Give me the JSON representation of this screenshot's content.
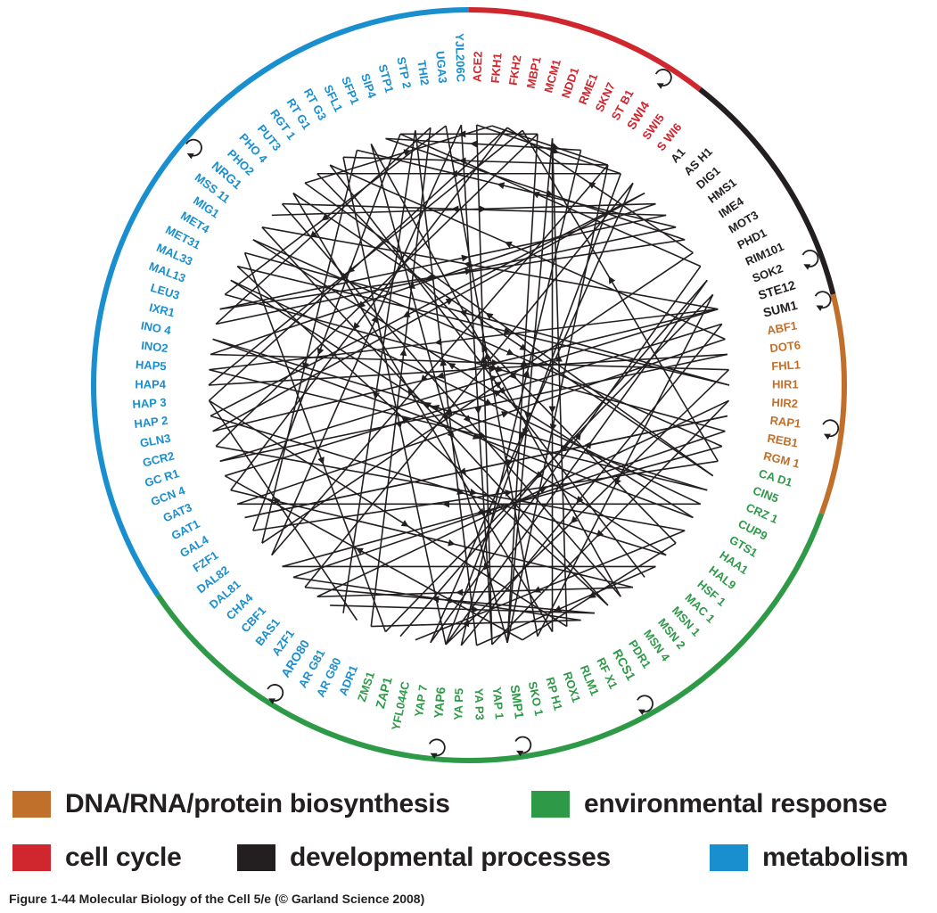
{
  "colors": {
    "biosynthesis": "#c0702a",
    "cell_cycle": "#d0262e",
    "developmental": "#231f20",
    "environmental": "#2e9a48",
    "metabolism": "#1a8fcf",
    "edge": "#231f20"
  },
  "ring_segments": [
    {
      "category": "cell_cycle",
      "from_deg": 0,
      "to_deg": 38
    },
    {
      "category": "developmental",
      "from_deg": 38,
      "to_deg": 76
    },
    {
      "category": "biosynthesis",
      "from_deg": 76,
      "to_deg": 110
    },
    {
      "category": "environmental",
      "from_deg": 110,
      "to_deg": 236
    },
    {
      "category": "metabolism",
      "from_deg": 236,
      "to_deg": 360
    }
  ],
  "genes": [
    {
      "name": "ACE2",
      "category": "cell_cycle"
    },
    {
      "name": "FKH1",
      "category": "cell_cycle"
    },
    {
      "name": "FKH2",
      "category": "cell_cycle"
    },
    {
      "name": "MBP1",
      "category": "cell_cycle"
    },
    {
      "name": "MCM1",
      "category": "cell_cycle"
    },
    {
      "name": "NDD1",
      "category": "cell_cycle"
    },
    {
      "name": "RME1",
      "category": "cell_cycle"
    },
    {
      "name": "SKN7",
      "category": "cell_cycle"
    },
    {
      "name": "ST B1",
      "category": "cell_cycle"
    },
    {
      "name": "SWI4",
      "category": "cell_cycle",
      "emph": true,
      "selfloop": true
    },
    {
      "name": "SWI5",
      "category": "cell_cycle"
    },
    {
      "name": "S WI6",
      "category": "cell_cycle"
    },
    {
      "name": "A1",
      "category": "developmental"
    },
    {
      "name": "AS H1",
      "category": "developmental"
    },
    {
      "name": "DIG1",
      "category": "developmental"
    },
    {
      "name": "HMS1",
      "category": "developmental"
    },
    {
      "name": "IME4",
      "category": "developmental"
    },
    {
      "name": "MOT3",
      "category": "developmental"
    },
    {
      "name": "PHD1",
      "category": "developmental"
    },
    {
      "name": "RIM101",
      "category": "developmental"
    },
    {
      "name": "SOK2",
      "category": "developmental",
      "selfloop": true
    },
    {
      "name": "STE12",
      "category": "developmental",
      "emph": true
    },
    {
      "name": "SUM1",
      "category": "developmental",
      "emph": true,
      "selfloop": true
    },
    {
      "name": "ABF1",
      "category": "biosynthesis"
    },
    {
      "name": "DOT6",
      "category": "biosynthesis"
    },
    {
      "name": "FHL1",
      "category": "biosynthesis"
    },
    {
      "name": "HIR1",
      "category": "biosynthesis"
    },
    {
      "name": "HIR2",
      "category": "biosynthesis"
    },
    {
      "name": "RAP1",
      "category": "biosynthesis",
      "selfloop": true
    },
    {
      "name": "REB1",
      "category": "biosynthesis"
    },
    {
      "name": "RGM 1",
      "category": "biosynthesis"
    },
    {
      "name": "CA D1",
      "category": "environmental"
    },
    {
      "name": "CIN5",
      "category": "environmental"
    },
    {
      "name": "CRZ 1",
      "category": "environmental"
    },
    {
      "name": "CUP9",
      "category": "environmental"
    },
    {
      "name": "GTS1",
      "category": "environmental"
    },
    {
      "name": "HAA1",
      "category": "environmental"
    },
    {
      "name": "HAL9",
      "category": "environmental"
    },
    {
      "name": "HSF 1",
      "category": "environmental"
    },
    {
      "name": "MAC 1",
      "category": "environmental"
    },
    {
      "name": "MSN 1",
      "category": "environmental"
    },
    {
      "name": "MSN 2",
      "category": "environmental"
    },
    {
      "name": "MSN 4",
      "category": "environmental"
    },
    {
      "name": "PDR1",
      "category": "environmental"
    },
    {
      "name": "RCS1",
      "category": "environmental",
      "emph": true,
      "selfloop": true
    },
    {
      "name": "RF X1",
      "category": "environmental"
    },
    {
      "name": "RLM1",
      "category": "environmental"
    },
    {
      "name": "ROX1",
      "category": "environmental"
    },
    {
      "name": "RP H1",
      "category": "environmental"
    },
    {
      "name": "SKO 1",
      "category": "environmental"
    },
    {
      "name": "SMP1",
      "category": "environmental",
      "emph": true,
      "selfloop": true
    },
    {
      "name": "YAP 1",
      "category": "environmental"
    },
    {
      "name": "YA P3",
      "category": "environmental"
    },
    {
      "name": "YA P5",
      "category": "environmental"
    },
    {
      "name": "YAP6",
      "category": "environmental",
      "emph": true,
      "selfloop": true
    },
    {
      "name": "YAP 7",
      "category": "environmental"
    },
    {
      "name": "YFL044C",
      "category": "environmental"
    },
    {
      "name": "ZAP1",
      "category": "environmental",
      "emph": true
    },
    {
      "name": "ZMS1",
      "category": "environmental"
    },
    {
      "name": "ADR1",
      "category": "metabolism"
    },
    {
      "name": "AR G80",
      "category": "metabolism"
    },
    {
      "name": "AR G81",
      "category": "metabolism"
    },
    {
      "name": "ARO80",
      "category": "metabolism",
      "emph": true,
      "selfloop": true
    },
    {
      "name": "AZF1",
      "category": "metabolism"
    },
    {
      "name": "BAS1",
      "category": "metabolism"
    },
    {
      "name": "CBF1",
      "category": "metabolism"
    },
    {
      "name": "CHA4",
      "category": "metabolism"
    },
    {
      "name": "DAL81",
      "category": "metabolism"
    },
    {
      "name": "DAL82",
      "category": "metabolism"
    },
    {
      "name": "FZF1",
      "category": "metabolism"
    },
    {
      "name": "GAL4",
      "category": "metabolism"
    },
    {
      "name": "GAT1",
      "category": "metabolism"
    },
    {
      "name": "GAT3",
      "category": "metabolism"
    },
    {
      "name": "GCN 4",
      "category": "metabolism"
    },
    {
      "name": "GC R1",
      "category": "metabolism"
    },
    {
      "name": "GCR2",
      "category": "metabolism"
    },
    {
      "name": "GLN3",
      "category": "metabolism"
    },
    {
      "name": "HAP 2",
      "category": "metabolism"
    },
    {
      "name": "HAP 3",
      "category": "metabolism"
    },
    {
      "name": "HAP4",
      "category": "metabolism"
    },
    {
      "name": "HAP5",
      "category": "metabolism"
    },
    {
      "name": "INO2",
      "category": "metabolism"
    },
    {
      "name": "INO 4",
      "category": "metabolism"
    },
    {
      "name": "IXR1",
      "category": "metabolism"
    },
    {
      "name": "LEU3",
      "category": "metabolism"
    },
    {
      "name": "MAL13",
      "category": "metabolism"
    },
    {
      "name": "MAL33",
      "category": "metabolism"
    },
    {
      "name": "MET31",
      "category": "metabolism"
    },
    {
      "name": "MET4",
      "category": "metabolism"
    },
    {
      "name": "MIG1",
      "category": "metabolism"
    },
    {
      "name": "MSS 11",
      "category": "metabolism"
    },
    {
      "name": "NRG1",
      "category": "metabolism",
      "emph": true,
      "selfloop": true
    },
    {
      "name": "PHO2",
      "category": "metabolism"
    },
    {
      "name": "PHO 4",
      "category": "metabolism"
    },
    {
      "name": "PUT3",
      "category": "metabolism"
    },
    {
      "name": "RGT 1",
      "category": "metabolism"
    },
    {
      "name": "RT G1",
      "category": "metabolism"
    },
    {
      "name": "RT G3",
      "category": "metabolism"
    },
    {
      "name": "SFL1",
      "category": "metabolism"
    },
    {
      "name": "SFP1",
      "category": "metabolism"
    },
    {
      "name": "SIP4",
      "category": "metabolism"
    },
    {
      "name": "STP1",
      "category": "metabolism"
    },
    {
      "name": "STP 2",
      "category": "metabolism"
    },
    {
      "name": "THI2",
      "category": "metabolism"
    },
    {
      "name": "UGA3",
      "category": "metabolism"
    },
    {
      "name": "YJL206C",
      "category": "metabolism"
    }
  ],
  "edges": [
    [
      "ACE2",
      "SWI5"
    ],
    [
      "FKH1",
      "SWI4"
    ],
    [
      "FKH2",
      "GAT3"
    ],
    [
      "MBP1",
      "HAP4"
    ],
    [
      "MCM1",
      "GCR2"
    ],
    [
      "NDD1",
      "ROX1"
    ],
    [
      "SKN7",
      "SIP4"
    ],
    [
      "SWI4",
      "RT G3"
    ],
    [
      "SWI4",
      "DAL81"
    ],
    [
      "SWI5",
      "RGT 1"
    ],
    [
      "S WI6",
      "YAP 7"
    ],
    [
      "SWI4",
      "SMP1"
    ],
    [
      "A1",
      "HAP 2"
    ],
    [
      "AS H1",
      "INO2"
    ],
    [
      "DIG1",
      "PHO2"
    ],
    [
      "HMS1",
      "SFL1"
    ],
    [
      "IME4",
      "LEU3"
    ],
    [
      "MOT3",
      "FKH2"
    ],
    [
      "PHD1",
      "STP1"
    ],
    [
      "RIM101",
      "ZAP1"
    ],
    [
      "SOK2",
      "RP H1"
    ],
    [
      "STE12",
      "GLN3"
    ],
    [
      "SUM1",
      "YA P5"
    ],
    [
      "STE12",
      "HAP5"
    ],
    [
      "STE12",
      "MSS 11"
    ],
    [
      "ABF1",
      "RT G1"
    ],
    [
      "DOT6",
      "GC R1"
    ],
    [
      "FHL1",
      "YAP6"
    ],
    [
      "HIR1",
      "MET4"
    ],
    [
      "HIR2",
      "YAP 1"
    ],
    [
      "RAP1",
      "GAL4"
    ],
    [
      "REB1",
      "CBF1"
    ],
    [
      "RGM 1",
      "CHA4"
    ],
    [
      "CA D1",
      "MBP1"
    ],
    [
      "CIN5",
      "PUT3"
    ],
    [
      "CRZ 1",
      "INO 4"
    ],
    [
      "CUP9",
      "GAT1"
    ],
    [
      "GTS1",
      "MIG1"
    ],
    [
      "HAA1",
      "YFL044C"
    ],
    [
      "HAL9",
      "SKO 1"
    ],
    [
      "HSF 1",
      "MAL33"
    ],
    [
      "MAC 1",
      "YA P3"
    ],
    [
      "MSN 2",
      "AZF1"
    ],
    [
      "MSN 4",
      "SFP1"
    ],
    [
      "PDR1",
      "MET31"
    ],
    [
      "RCS1",
      "BAS1"
    ],
    [
      "RF X1",
      "ADR1"
    ],
    [
      "RLM1",
      "NDD1"
    ],
    [
      "ROX1",
      "PHO 4"
    ],
    [
      "RP H1",
      "UGA3"
    ],
    [
      "SKO 1",
      "GCN 4"
    ],
    [
      "SMP1",
      "MCM1"
    ],
    [
      "YAP 1",
      "ACE2"
    ],
    [
      "YA P3",
      "STP 2"
    ],
    [
      "YA P5",
      "SKN7"
    ],
    [
      "YAP6",
      "RIM101"
    ],
    [
      "YAP 7",
      "PHD1"
    ],
    [
      "ZMS1",
      "SOK2"
    ],
    [
      "ADR1",
      "THI2"
    ],
    [
      "AR G80",
      "HAP 3"
    ],
    [
      "ARO80",
      "RCS1"
    ],
    [
      "AZF1",
      "HIR2"
    ],
    [
      "BAS1",
      "S WI6"
    ],
    [
      "CBF1",
      "RF X1"
    ],
    [
      "CHA4",
      "MAC 1"
    ],
    [
      "DAL81",
      "YJL206C"
    ],
    [
      "DAL82",
      "MOT3"
    ],
    [
      "FZF1",
      "CA D1"
    ],
    [
      "GAL4",
      "RAP1"
    ],
    [
      "GAT1",
      "ABF1"
    ],
    [
      "GAT3",
      "MSN 2"
    ],
    [
      "GCN 4",
      "SUM1"
    ],
    [
      "GC R1",
      "STE12"
    ],
    [
      "GCR2",
      "HAA1"
    ],
    [
      "GLN3",
      "A1"
    ],
    [
      "HAP 2",
      "HSF 1"
    ],
    [
      "HAP 3",
      "RLM1"
    ],
    [
      "HAP4",
      "DOT6"
    ],
    [
      "HAP5",
      "CRZ 1"
    ],
    [
      "INO2",
      "FHL1"
    ],
    [
      "INO 4",
      "GTS1"
    ],
    [
      "IXR1",
      "HMS1"
    ],
    [
      "LEU3",
      "DIG1"
    ],
    [
      "MAL13",
      "REB1"
    ],
    [
      "MAL33",
      "CUP9"
    ],
    [
      "MET31",
      "HIR1"
    ],
    [
      "MET4",
      "ZMS1"
    ],
    [
      "MIG1",
      "RGM 1"
    ],
    [
      "MSS 11",
      "PDR1"
    ],
    [
      "NRG1",
      "AS H1"
    ],
    [
      "PHO2",
      "MSN 4"
    ],
    [
      "PHO 4",
      "CIN5"
    ],
    [
      "PUT3",
      "FKH1"
    ],
    [
      "RGT 1",
      "HAL9"
    ],
    [
      "RT G1",
      "MSN 1"
    ],
    [
      "RT G3",
      "YAP6"
    ],
    [
      "SFL1",
      "DAL82"
    ],
    [
      "SFP1",
      "SMP1"
    ],
    [
      "SIP4",
      "IME4"
    ],
    [
      "STP1",
      "FZF1"
    ],
    [
      "STP 2",
      "AR G81"
    ],
    [
      "THI2",
      "IXR1"
    ],
    [
      "UGA3",
      "MAL13"
    ],
    [
      "YJL206C",
      "YAP 1"
    ],
    [
      "MCM1",
      "STP1"
    ],
    [
      "FKH2",
      "HAP 3"
    ],
    [
      "NDD1",
      "SMP1"
    ],
    [
      "SWI5",
      "YAP6"
    ]
  ],
  "legend": {
    "row1": [
      {
        "category": "biosynthesis",
        "label": "DNA/RNA/protein biosynthesis"
      },
      {
        "category": "environmental",
        "label": "environmental response"
      }
    ],
    "row2": [
      {
        "category": "cell_cycle",
        "label": "cell cycle"
      },
      {
        "category": "developmental",
        "label": "developmental processes"
      },
      {
        "category": "metabolism",
        "label": "metabolism"
      }
    ]
  },
  "caption": "Figure 1-44  Molecular Biology of the Cell 5/e (© Garland Science 2008)"
}
